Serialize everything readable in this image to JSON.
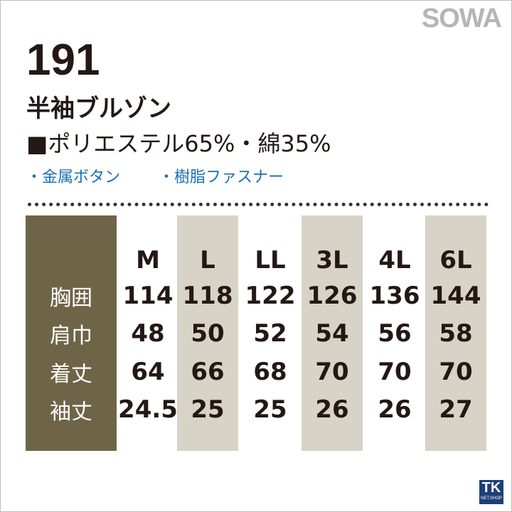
{
  "brand": "SOWA",
  "header": {
    "number": "191",
    "name": "半袖ブルゾン",
    "material": "■ポリエステル65%・綿35%",
    "features": [
      "・金属ボタン",
      "・樹脂ファスナー"
    ]
  },
  "table": {
    "columns": [
      "M",
      "L",
      "LL",
      "3L",
      "4L",
      "6L"
    ],
    "rows": [
      {
        "label": "胸囲",
        "values": [
          114,
          118,
          122,
          126,
          136,
          144
        ]
      },
      {
        "label": "肩巾",
        "values": [
          48,
          50,
          52,
          54,
          56,
          58
        ]
      },
      {
        "label": "着丈",
        "values": [
          64,
          66,
          68,
          70,
          70,
          70
        ]
      },
      {
        "label": "袖丈",
        "values": [
          24.5,
          25,
          25,
          26,
          26,
          27
        ]
      }
    ]
  },
  "shop_logo": {
    "mark": "TK",
    "text": "NET.SHOP"
  }
}
